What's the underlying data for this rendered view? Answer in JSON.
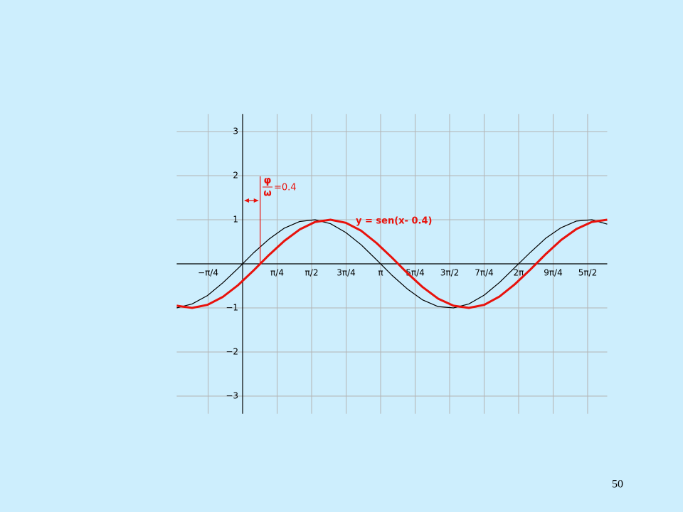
{
  "chart_data": {
    "type": "line",
    "x": [
      -1.5,
      -1.15,
      -0.8,
      -0.45,
      -0.1,
      0.25,
      0.6,
      0.95,
      1.3,
      1.65,
      2.0,
      2.35,
      2.7,
      3.05,
      3.4,
      3.75,
      4.1,
      4.45,
      4.8,
      5.15,
      5.5,
      5.85,
      6.2,
      6.55,
      6.9,
      7.25,
      7.6,
      7.95,
      8.3
    ],
    "series": [
      {
        "color": "#000000",
        "values": [
          -1.0,
          -0.91,
          -0.72,
          -0.43,
          -0.1,
          0.25,
          0.56,
          0.81,
          0.96,
          1.0,
          0.91,
          0.71,
          0.43,
          0.09,
          -0.26,
          -0.57,
          -0.82,
          -0.97,
          -1.0,
          -0.91,
          -0.71,
          -0.42,
          -0.08,
          0.26,
          0.58,
          0.82,
          0.97,
          1.0,
          0.9
        ]
      },
      {
        "color": "#e8120c",
        "values": [
          -0.95,
          -1.0,
          -0.93,
          -0.75,
          -0.48,
          -0.15,
          0.2,
          0.52,
          0.78,
          0.95,
          1.0,
          0.93,
          0.75,
          0.47,
          0.14,
          -0.21,
          -0.53,
          -0.79,
          -0.95,
          -1.0,
          -0.93,
          -0.74,
          -0.46,
          -0.13,
          0.22,
          0.54,
          0.79,
          0.95,
          1.0
        ]
      }
    ],
    "xlim": [
      -1.5,
      8.3
    ],
    "ylim": [
      -3.4,
      3.4
    ],
    "xticks": [
      {
        "value": -0.7854,
        "label": "−π/4"
      },
      {
        "value": 0.7854,
        "label": "π/4"
      },
      {
        "value": 1.5708,
        "label": "π/2"
      },
      {
        "value": 2.3562,
        "label": "3π/4"
      },
      {
        "value": 3.1416,
        "label": "π"
      },
      {
        "value": 3.927,
        "label": "5π/4"
      },
      {
        "value": 4.7124,
        "label": "3π/2"
      },
      {
        "value": 5.4978,
        "label": "7π/4"
      },
      {
        "value": 6.2832,
        "label": "2π"
      },
      {
        "value": 7.0686,
        "label": "9π/4"
      },
      {
        "value": 7.854,
        "label": "5π/2"
      }
    ],
    "yticks": [
      {
        "value": -3,
        "label": "−3"
      },
      {
        "value": -2,
        "label": "−2"
      },
      {
        "value": -1,
        "label": "−1"
      },
      1,
      2,
      3
    ],
    "grid": true,
    "curve_label": "y = sen(x- 0.4)",
    "phase_shift": 0.4,
    "phase_numerator": "φ",
    "phase_denominator": "ω",
    "phase_value_label": "=0.4"
  },
  "slide": {
    "page_number": "50"
  }
}
